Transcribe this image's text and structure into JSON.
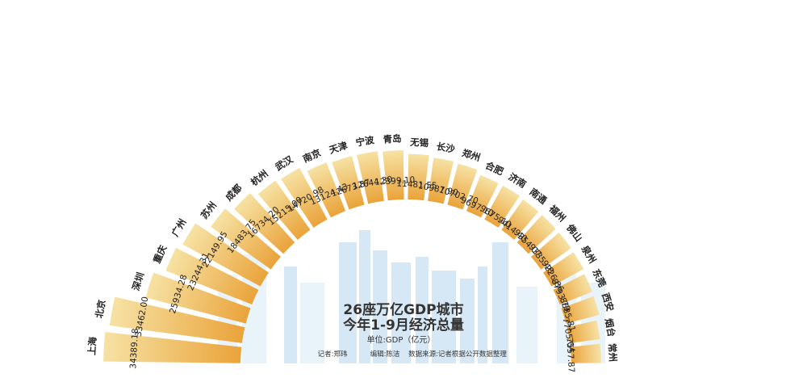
{
  "chart_data": {
    "type": "bar",
    "title": "26座万亿GDP城市",
    "subtitle": "今年1-9月经济总量",
    "unit": "单位:GDP（亿元）",
    "categories": [
      "上海",
      "北京",
      "深圳",
      "重庆",
      "广州",
      "苏州",
      "成都",
      "杭州",
      "武汉",
      "南京",
      "天津",
      "宁波",
      "青岛",
      "无锡",
      "长沙",
      "郑州",
      "合肥",
      "济南",
      "南通",
      "福州",
      "佛山",
      "泉州",
      "东莞",
      "西安",
      "烟台",
      "常州"
    ],
    "values": [
      34389.18,
      33462.0,
      25934.28,
      23244.31,
      22149.95,
      18483.75,
      16734.2,
      15215.0,
      14720.98,
      13124.43,
      12673.87,
      12644.3,
      12399.1,
      11481.55,
      10987.9,
      10702.7,
      9697.1,
      9675.1,
      9414.4,
      9354.07,
      9335.48,
      9226.86,
      8793.79,
      8685.81,
      7705.04,
      7557.87
    ],
    "value_labels": [
      "34389.18",
      "33462.00",
      "25934.28",
      "23244.31",
      "22149.95",
      "18483.75",
      "16734.20",
      "15215.00",
      "14720.98",
      "13124.43",
      "12673.87",
      "12644.30",
      "12399.10",
      "11481.55",
      "10987.90",
      "10702.70",
      "9697.10",
      "9675.10",
      "9414.40",
      "9354.07",
      "9335.48",
      "9226.86",
      "8793.79",
      "8685.81",
      "7705.04",
      "7557.87"
    ]
  },
  "credits": {
    "reporter": "记者:郑玮",
    "editor": "编辑:陈洁",
    "source": "数据来源:记者根据公开数据整理"
  },
  "colors": {
    "bar_outer": "#f6e2a4",
    "bar_inner": "#eaa33a",
    "skyline": "#cfe4f5"
  }
}
